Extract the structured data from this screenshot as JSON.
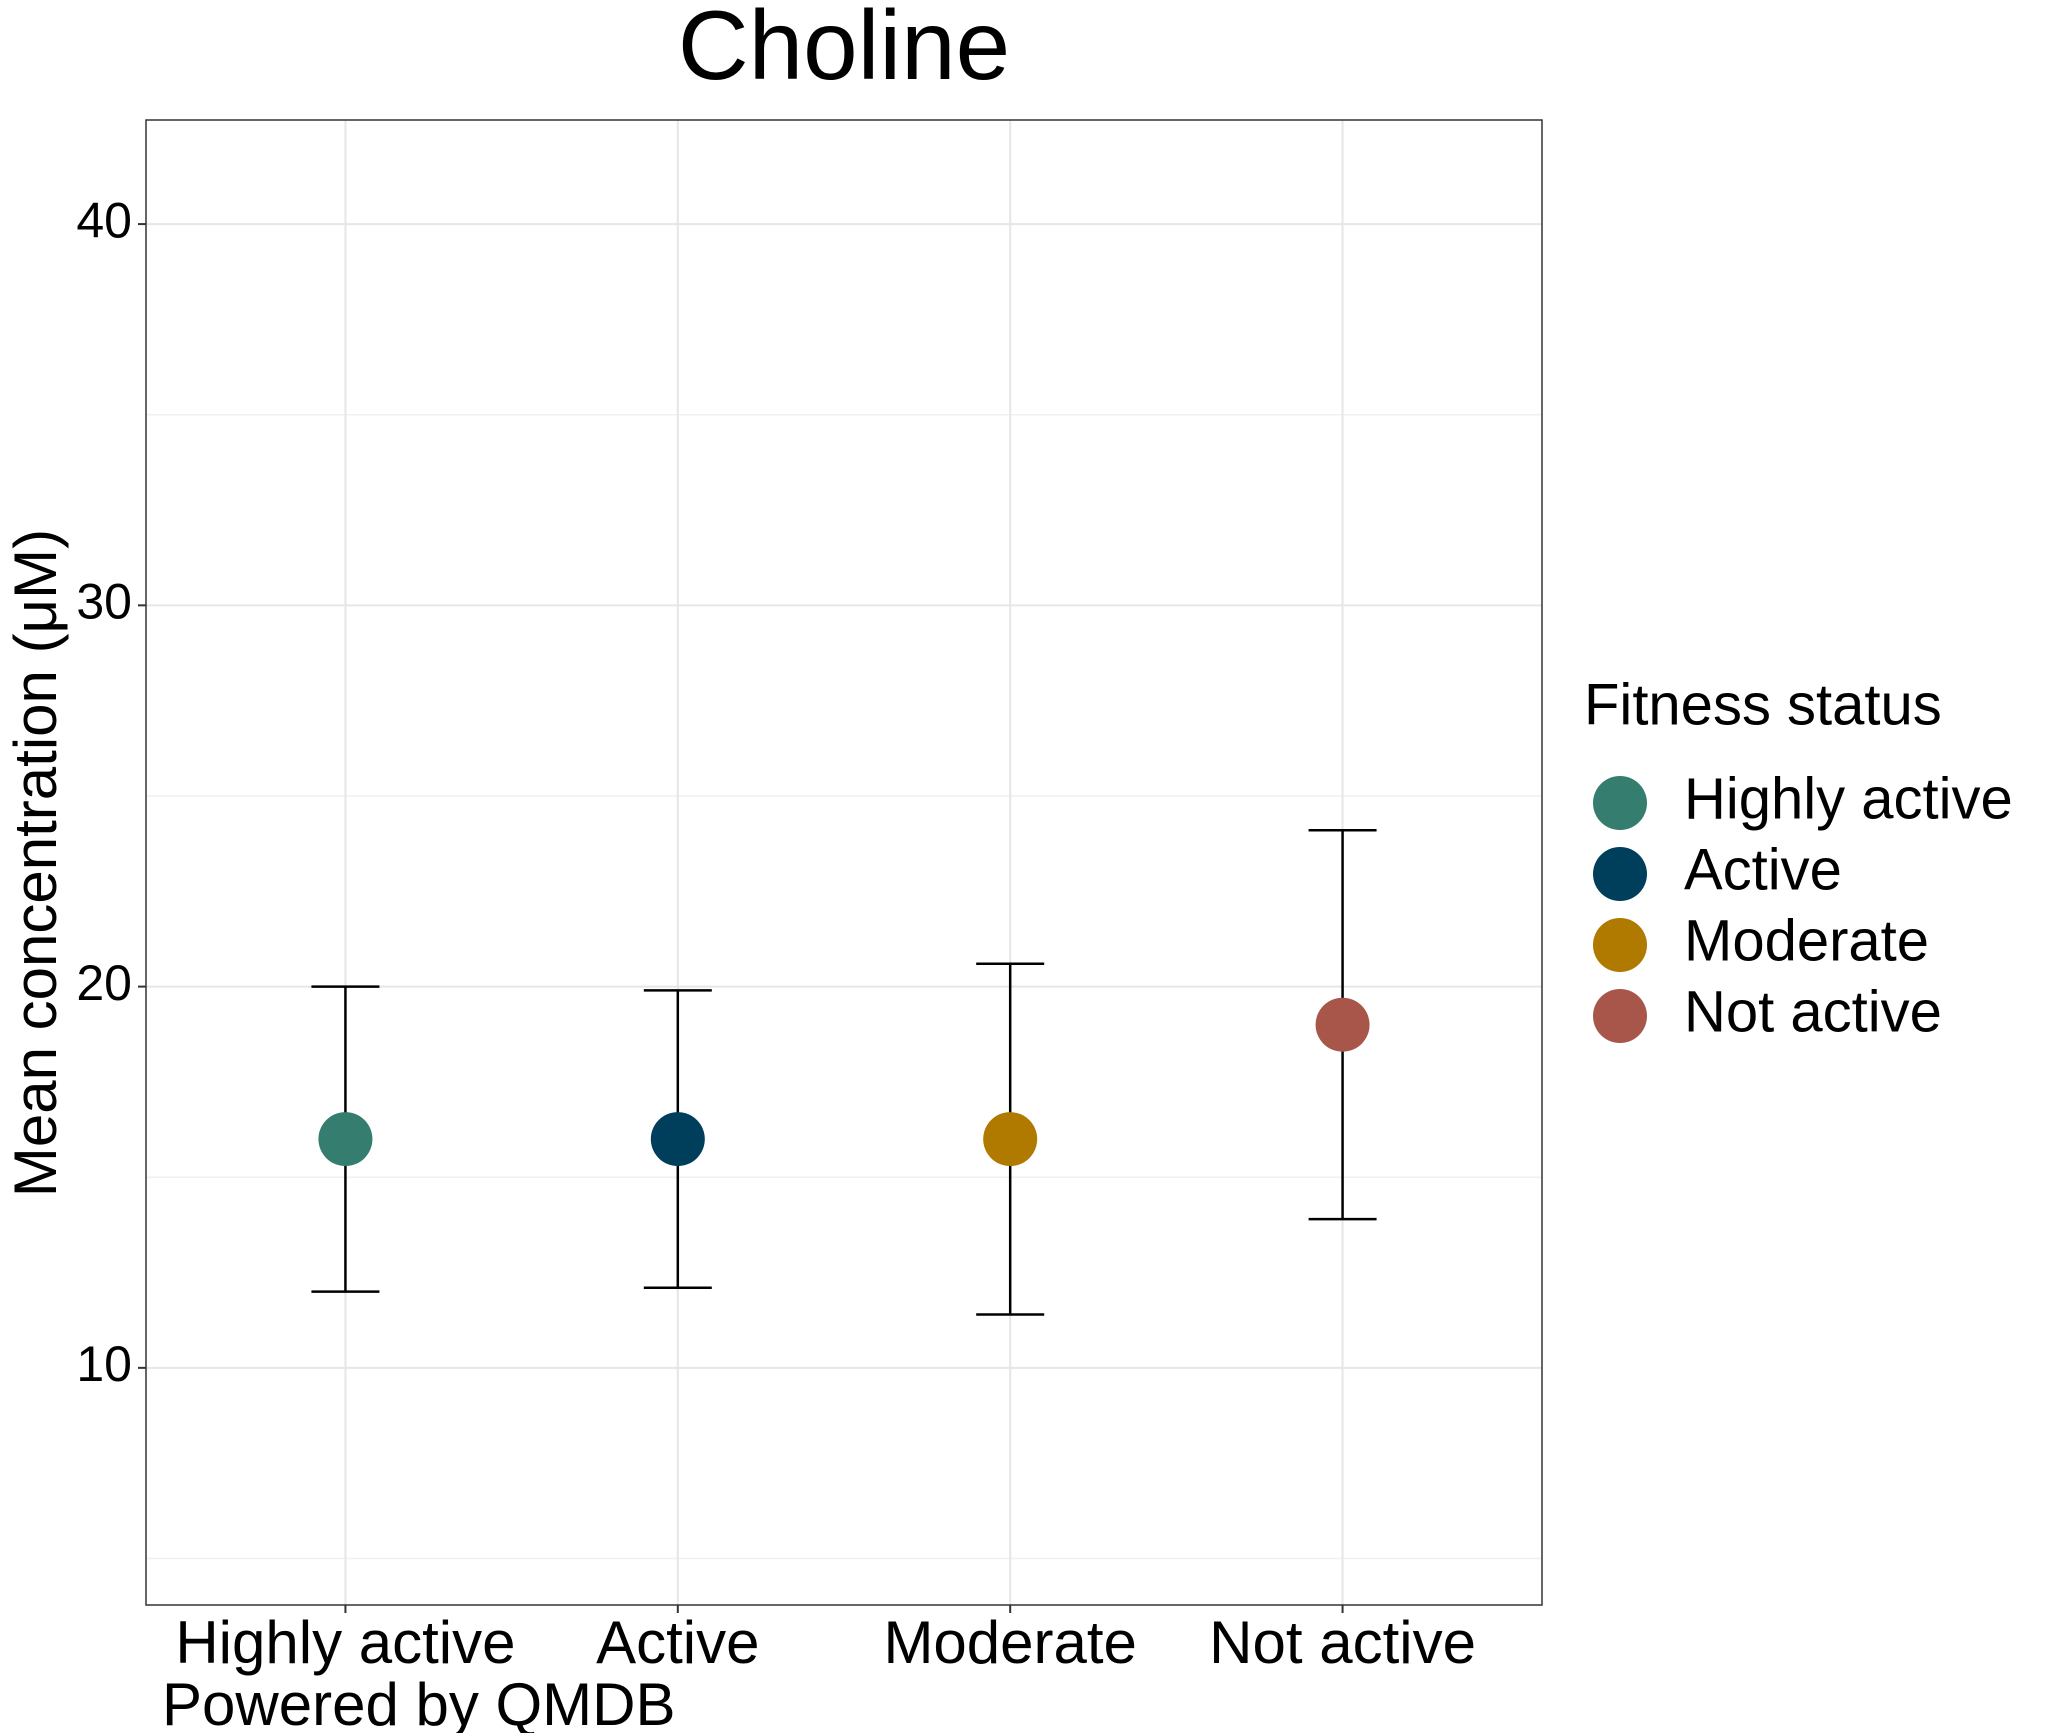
{
  "chart_data": {
    "type": "errorbar",
    "title": "Choline",
    "ylabel": "Mean concentration (μM)",
    "caption": "Powered by QMDB",
    "categories": [
      "Highly active",
      "Active",
      "Moderate",
      "Not active"
    ],
    "values": [
      16,
      16,
      16,
      19
    ],
    "lower": [
      12,
      12.1,
      11.4,
      13.9
    ],
    "upper": [
      20,
      19.9,
      20.6,
      24.1
    ],
    "colors": [
      "#347d6f",
      "#003f5c",
      "#b07a00",
      "#a8564a"
    ],
    "legend_title": "Fitness status",
    "legend_position": "right",
    "ylim": [
      3.78,
      42.73
    ],
    "yticks": [
      10,
      20,
      30,
      40
    ],
    "minor_grid": [
      5,
      15,
      25,
      35
    ],
    "grid": true
  }
}
